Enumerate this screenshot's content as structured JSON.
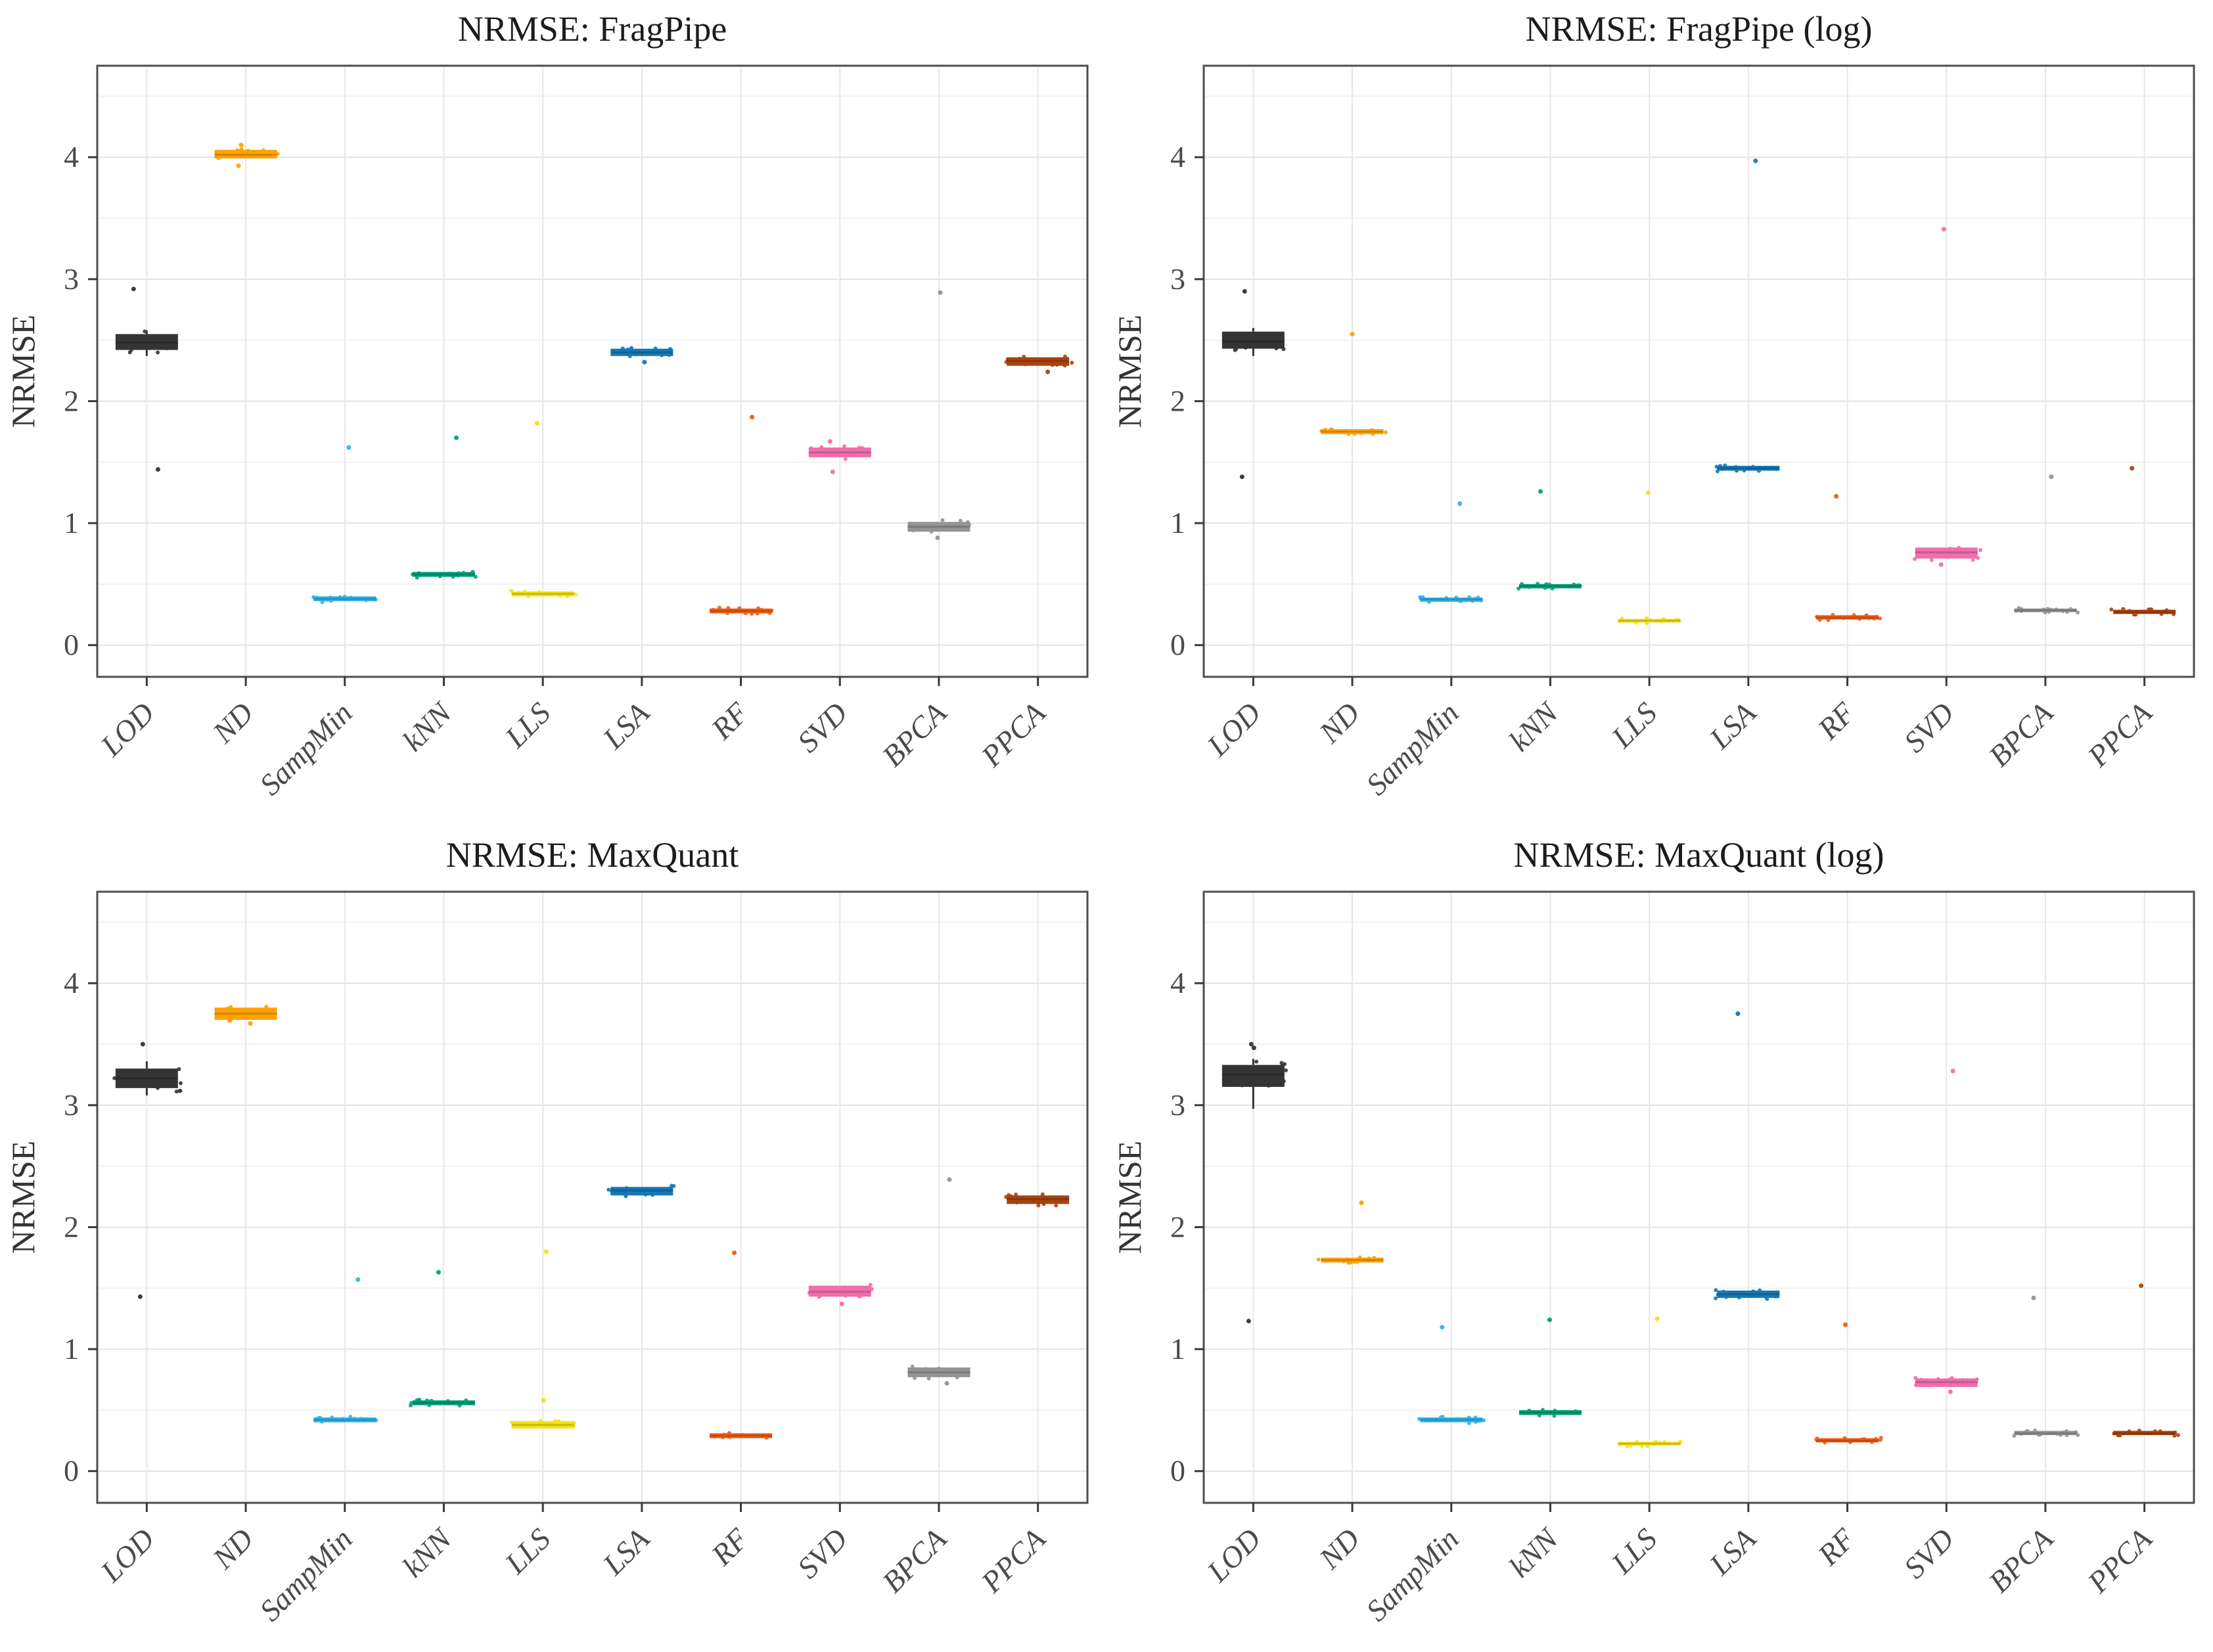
{
  "figure": {
    "kind": "boxplot-grid",
    "rows": 2,
    "cols": 2
  },
  "axis": {
    "y_label": "NRMSE",
    "y_ticks": [
      0,
      1,
      2,
      3,
      4
    ],
    "ylim": [
      -0.26,
      4.75
    ],
    "grid_major_color": "#e3e3e3",
    "grid_minor_color": "#f1f1f1",
    "panel_border_color": "#4d4d4d",
    "tick_color": "#3a3a3a",
    "tick_label_color": "#4b4b4b",
    "title_color": "#1c1c1c"
  },
  "categories": [
    "LOD",
    "ND",
    "SampMin",
    "kNN",
    "LLS",
    "LSA",
    "RF",
    "SVD",
    "BPCA",
    "PPCA"
  ],
  "palette": {
    "LOD": "#343434",
    "ND": "#FFA100",
    "SampMin": "#2FB3EA",
    "kNN": "#00A279",
    "LLS": "#F6E213",
    "LSA": "#1478B5",
    "RF": "#F15C12",
    "SVD": "#EF6EAB",
    "BPCA": "#949494",
    "PPCA": "#A8430E"
  },
  "chart_data": [
    {
      "id": "fragpipe-raw",
      "type": "box",
      "title": "NRMSE: FragPipe",
      "ylabel": "NRMSE",
      "ylim": [
        -0.26,
        4.75
      ],
      "yticks": [
        0,
        1,
        2,
        3,
        4
      ],
      "categories": [
        "LOD",
        "ND",
        "SampMin",
        "kNN",
        "LLS",
        "LSA",
        "RF",
        "SVD",
        "BPCA",
        "PPCA"
      ],
      "series": [
        {
          "name": "LOD",
          "q1": 2.42,
          "median": 2.48,
          "q3": 2.55,
          "lo": 2.37,
          "hi": 2.58,
          "outliers": [
            2.92,
            1.44
          ]
        },
        {
          "name": "ND",
          "q1": 3.99,
          "median": 4.02,
          "q3": 4.06,
          "outliers": [
            4.1,
            3.93
          ]
        },
        {
          "name": "SampMin",
          "q1": 0.36,
          "median": 0.38,
          "q3": 0.4,
          "outliers": [
            1.62
          ]
        },
        {
          "name": "kNN",
          "q1": 0.56,
          "median": 0.58,
          "q3": 0.6,
          "outliers": [
            1.7
          ]
        },
        {
          "name": "LLS",
          "q1": 0.4,
          "median": 0.42,
          "q3": 0.44,
          "outliers": [
            1.82
          ]
        },
        {
          "name": "LSA",
          "q1": 2.37,
          "median": 2.4,
          "q3": 2.43,
          "outliers": [
            2.32
          ]
        },
        {
          "name": "RF",
          "q1": 0.26,
          "median": 0.28,
          "q3": 0.3,
          "outliers": [
            1.87
          ]
        },
        {
          "name": "SVD",
          "q1": 1.54,
          "median": 1.58,
          "q3": 1.62,
          "outliers": [
            1.42,
            1.67
          ]
        },
        {
          "name": "BPCA",
          "q1": 0.93,
          "median": 0.97,
          "q3": 1.01,
          "outliers": [
            2.89,
            0.88
          ]
        },
        {
          "name": "PPCA",
          "q1": 2.29,
          "median": 2.33,
          "q3": 2.36,
          "outliers": [
            2.24
          ]
        }
      ]
    },
    {
      "id": "fragpipe-log",
      "type": "box",
      "title": "NRMSE: FragPipe (log)",
      "ylabel": "NRMSE",
      "ylim": [
        -0.26,
        4.75
      ],
      "yticks": [
        0,
        1,
        2,
        3,
        4
      ],
      "categories": [
        "LOD",
        "ND",
        "SampMin",
        "kNN",
        "LLS",
        "LSA",
        "RF",
        "SVD",
        "BPCA",
        "PPCA"
      ],
      "series": [
        {
          "name": "LOD",
          "q1": 2.43,
          "median": 2.49,
          "q3": 2.57,
          "lo": 2.37,
          "hi": 2.6,
          "outliers": [
            2.9,
            1.38
          ]
        },
        {
          "name": "ND",
          "q1": 1.73,
          "median": 1.75,
          "q3": 1.77,
          "outliers": [
            2.55
          ]
        },
        {
          "name": "SampMin",
          "q1": 0.355,
          "median": 0.375,
          "q3": 0.39,
          "outliers": [
            1.16
          ]
        },
        {
          "name": "kNN",
          "q1": 0.465,
          "median": 0.485,
          "q3": 0.5,
          "outliers": [
            1.26
          ]
        },
        {
          "name": "LLS",
          "q1": 0.185,
          "median": 0.2,
          "q3": 0.215,
          "outliers": [
            1.25
          ]
        },
        {
          "name": "LSA",
          "q1": 1.43,
          "median": 1.45,
          "q3": 1.47,
          "outliers": [
            3.97
          ]
        },
        {
          "name": "RF",
          "q1": 0.21,
          "median": 0.225,
          "q3": 0.245,
          "outliers": [
            1.22
          ]
        },
        {
          "name": "SVD",
          "q1": 0.71,
          "median": 0.76,
          "q3": 0.8,
          "outliers": [
            3.41,
            0.66
          ]
        },
        {
          "name": "BPCA",
          "q1": 0.27,
          "median": 0.285,
          "q3": 0.3,
          "outliers": [
            1.38
          ]
        },
        {
          "name": "PPCA",
          "q1": 0.255,
          "median": 0.27,
          "q3": 0.29,
          "outliers": [
            1.45
          ]
        }
      ]
    },
    {
      "id": "maxquant-raw",
      "type": "box",
      "title": "NRMSE: MaxQuant",
      "ylabel": "NRMSE",
      "ylim": [
        -0.26,
        4.75
      ],
      "yticks": [
        0,
        1,
        2,
        3,
        4
      ],
      "categories": [
        "LOD",
        "ND",
        "SampMin",
        "kNN",
        "LLS",
        "LSA",
        "RF",
        "SVD",
        "BPCA",
        "PPCA"
      ],
      "series": [
        {
          "name": "LOD",
          "q1": 3.14,
          "median": 3.22,
          "q3": 3.3,
          "lo": 3.08,
          "hi": 3.36,
          "outliers": [
            3.5,
            1.43
          ]
        },
        {
          "name": "ND",
          "q1": 3.7,
          "median": 3.75,
          "q3": 3.8,
          "outliers": [
            3.67
          ]
        },
        {
          "name": "SampMin",
          "q1": 0.4,
          "median": 0.42,
          "q3": 0.44,
          "outliers": [
            1.57
          ]
        },
        {
          "name": "kNN",
          "q1": 0.54,
          "median": 0.56,
          "q3": 0.58,
          "outliers": [
            1.63
          ]
        },
        {
          "name": "LLS",
          "q1": 0.35,
          "median": 0.38,
          "q3": 0.41,
          "outliers": [
            1.8,
            0.58
          ]
        },
        {
          "name": "LSA",
          "q1": 2.26,
          "median": 2.3,
          "q3": 2.33,
          "outliers": []
        },
        {
          "name": "RF",
          "q1": 0.27,
          "median": 0.29,
          "q3": 0.31,
          "outliers": [
            1.79
          ]
        },
        {
          "name": "SVD",
          "q1": 1.43,
          "median": 1.47,
          "q3": 1.52,
          "outliers": [
            1.37
          ]
        },
        {
          "name": "BPCA",
          "q1": 0.77,
          "median": 0.81,
          "q3": 0.85,
          "outliers": [
            2.39,
            0.72
          ]
        },
        {
          "name": "PPCA",
          "q1": 2.19,
          "median": 2.23,
          "q3": 2.26,
          "outliers": []
        }
      ]
    },
    {
      "id": "maxquant-log",
      "type": "box",
      "title": "NRMSE: MaxQuant (log)",
      "ylabel": "NRMSE",
      "ylim": [
        -0.26,
        4.75
      ],
      "yticks": [
        0,
        1,
        2,
        3,
        4
      ],
      "categories": [
        "LOD",
        "ND",
        "SampMin",
        "kNN",
        "LLS",
        "LSA",
        "RF",
        "SVD",
        "BPCA",
        "PPCA"
      ],
      "series": [
        {
          "name": "LOD",
          "q1": 3.15,
          "median": 3.25,
          "q3": 3.33,
          "lo": 2.97,
          "hi": 3.38,
          "outliers": [
            3.47,
            3.5,
            1.23
          ]
        },
        {
          "name": "ND",
          "q1": 1.71,
          "median": 1.73,
          "q3": 1.75,
          "outliers": [
            2.2
          ]
        },
        {
          "name": "SampMin",
          "q1": 0.4,
          "median": 0.42,
          "q3": 0.44,
          "outliers": [
            1.18
          ]
        },
        {
          "name": "kNN",
          "q1": 0.46,
          "median": 0.48,
          "q3": 0.5,
          "outliers": [
            1.24
          ]
        },
        {
          "name": "LLS",
          "q1": 0.21,
          "median": 0.225,
          "q3": 0.24,
          "outliers": [
            1.25
          ]
        },
        {
          "name": "LSA",
          "q1": 1.42,
          "median": 1.45,
          "q3": 1.48,
          "outliers": [
            3.75
          ]
        },
        {
          "name": "RF",
          "q1": 0.235,
          "median": 0.25,
          "q3": 0.27,
          "outliers": [
            1.2
          ]
        },
        {
          "name": "SVD",
          "q1": 0.69,
          "median": 0.73,
          "q3": 0.76,
          "outliers": [
            3.28,
            0.65
          ]
        },
        {
          "name": "BPCA",
          "q1": 0.295,
          "median": 0.31,
          "q3": 0.33,
          "outliers": [
            1.42
          ]
        },
        {
          "name": "PPCA",
          "q1": 0.295,
          "median": 0.31,
          "q3": 0.33,
          "outliers": [
            1.52
          ]
        }
      ]
    }
  ]
}
